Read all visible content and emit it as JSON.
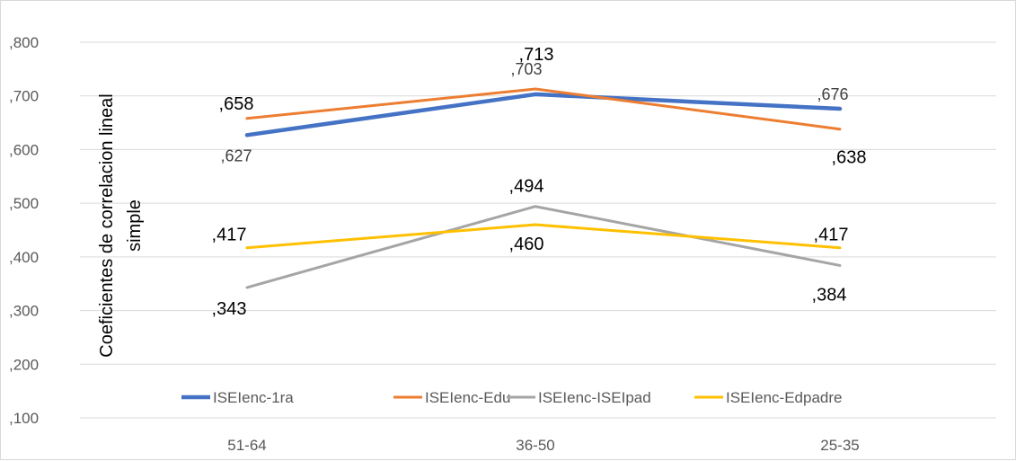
{
  "chart_data": {
    "type": "line",
    "categories": [
      "51-64",
      "36-50",
      "25-35"
    ],
    "ylabel_lines": [
      "Coeficientes de correlacion lineal",
      "simple"
    ],
    "ylim": [
      0.1,
      0.8
    ],
    "yticks": [
      ",100",
      ",200",
      ",300",
      ",400",
      ",500",
      ",600",
      ",700",
      ",800"
    ],
    "ytick_values": [
      0.1,
      0.2,
      0.3,
      0.4,
      0.5,
      0.6,
      0.7,
      0.8
    ],
    "grid": true,
    "legend_position": "bottom",
    "series": [
      {
        "name": "ISEIenc-1ra",
        "color": "#4472c4",
        "values": [
          0.627,
          0.703,
          0.676
        ],
        "labels": [
          ",627",
          ",703",
          ",676"
        ]
      },
      {
        "name": "ISEIenc-Edu",
        "color": "#ed7d31",
        "values": [
          0.658,
          0.713,
          0.638
        ],
        "labels": [
          ",658",
          ",713",
          ",638"
        ]
      },
      {
        "name": "ISEIenc-ISEIpad",
        "color": "#a5a5a5",
        "values": [
          0.343,
          0.494,
          0.384
        ],
        "labels": [
          ",343",
          ",494",
          ",384"
        ]
      },
      {
        "name": "ISEIenc-Edpadre",
        "color": "#ffc000",
        "values": [
          0.417,
          0.46,
          0.417
        ],
        "labels": [
          ",417",
          ",460",
          ",417"
        ]
      }
    ]
  }
}
